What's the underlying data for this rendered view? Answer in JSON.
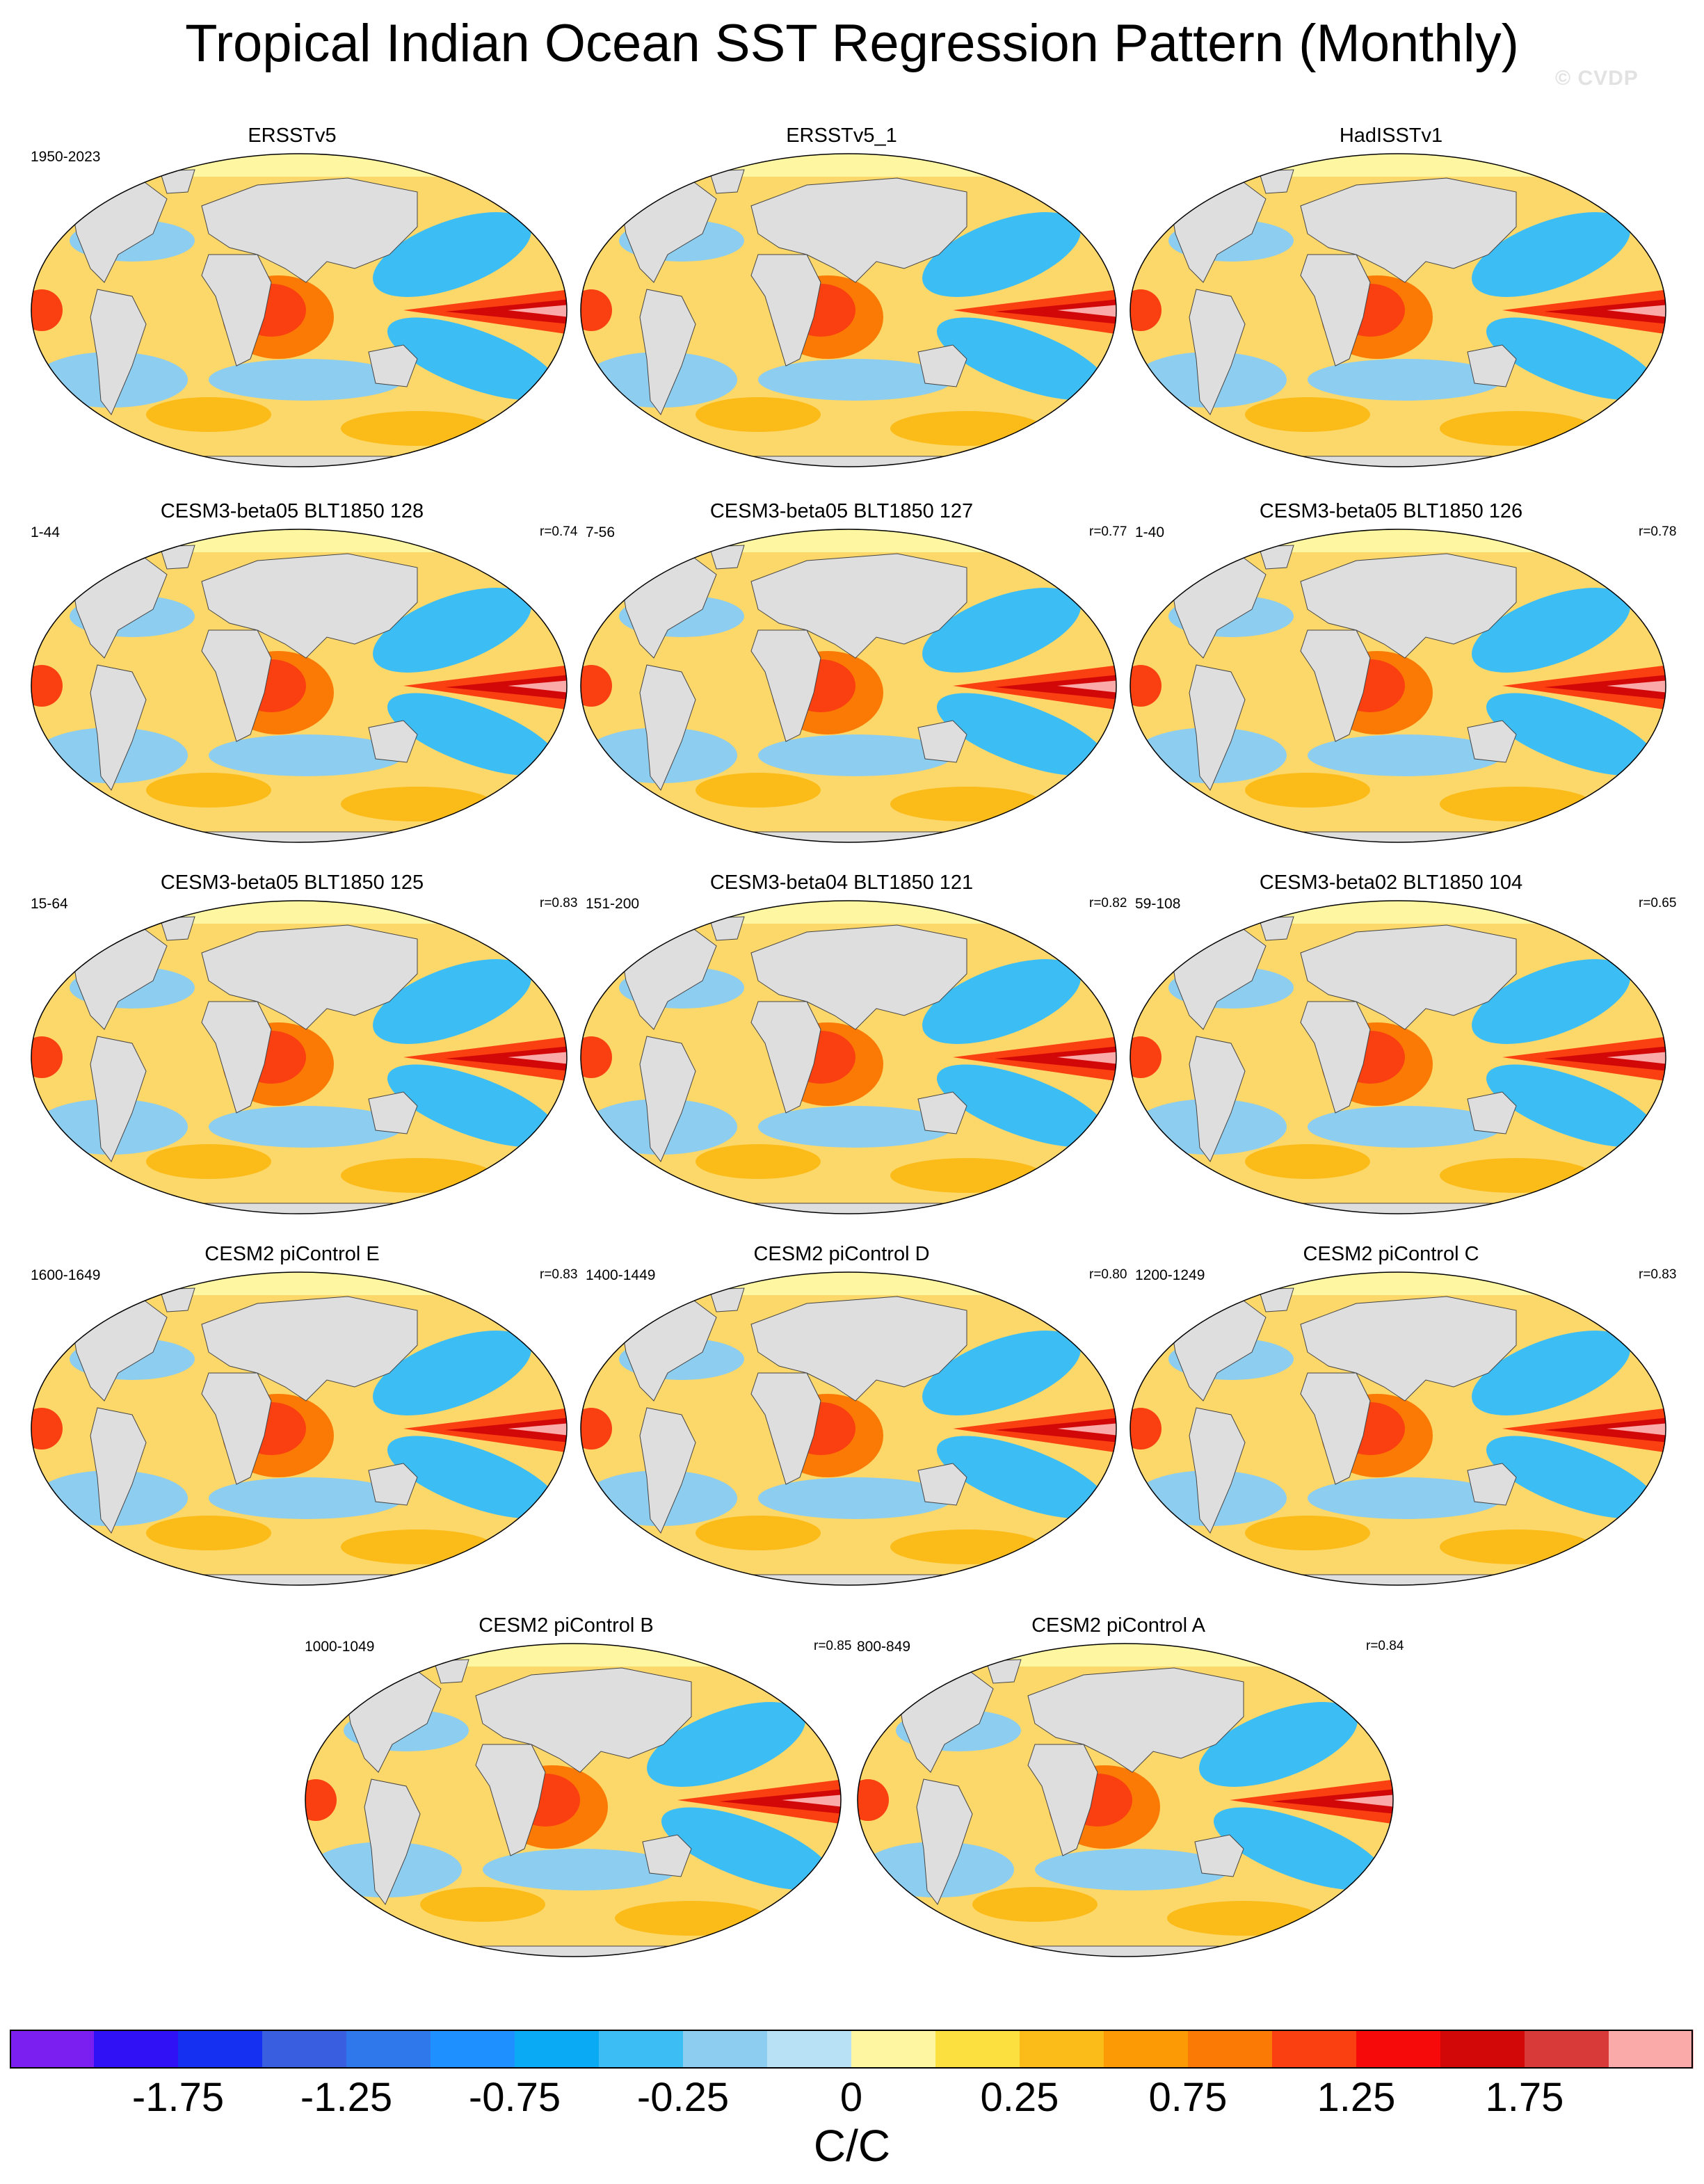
{
  "title": "Tropical Indian Ocean SST Regression Pattern (Monthly)",
  "credit": "© CVDP",
  "panels": [
    {
      "title": "ERSSTv5",
      "period": "1950-2023",
      "r": ""
    },
    {
      "title": "ERSSTv5_1",
      "period": "",
      "r": ""
    },
    {
      "title": "HadISSTv1",
      "period": "",
      "r": ""
    },
    {
      "title": "CESM3-beta05 BLT1850 128",
      "period": "1-44",
      "r": "r=0.74"
    },
    {
      "title": "CESM3-beta05 BLT1850 127",
      "period": "7-56",
      "r": "r=0.77"
    },
    {
      "title": "CESM3-beta05 BLT1850 126",
      "period": "1-40",
      "r": "r=0.78"
    },
    {
      "title": "CESM3-beta05 BLT1850 125",
      "period": "15-64",
      "r": "r=0.83"
    },
    {
      "title": "CESM3-beta04 BLT1850 121",
      "period": "151-200",
      "r": "r=0.82"
    },
    {
      "title": "CESM3-beta02 BLT1850 104",
      "period": "59-108",
      "r": "r=0.65"
    },
    {
      "title": "CESM2 piControl E",
      "period": "1600-1649",
      "r": "r=0.83"
    },
    {
      "title": "CESM2 piControl D",
      "period": "1400-1449",
      "r": "r=0.80"
    },
    {
      "title": "CESM2 piControl C",
      "period": "1200-1249",
      "r": "r=0.83"
    },
    {
      "title": "CESM2 piControl B",
      "period": "1000-1049",
      "r": "r=0.85"
    },
    {
      "title": "CESM2 piControl A",
      "period": "800-849",
      "r": "r=0.84"
    }
  ],
  "colorbar": {
    "colors": [
      "#7b1ff0",
      "#3010f5",
      "#1530f0",
      "#3a5ee0",
      "#2f78ec",
      "#1e90ff",
      "#0aaaf5",
      "#3cbef5",
      "#8ccdf0",
      "#b9e1f5",
      "#fef6a0",
      "#fce040",
      "#fbbb18",
      "#fb9a05",
      "#fa7a05",
      "#fa4010",
      "#f70a0a",
      "#d20808",
      "#d83a3a",
      "#fbaaaa"
    ],
    "ticks": [
      "-1.75",
      "-1.25",
      "-0.75",
      "-0.25",
      "0",
      "0.25",
      "0.75",
      "1.25",
      "1.75"
    ],
    "units": "C/C"
  }
}
